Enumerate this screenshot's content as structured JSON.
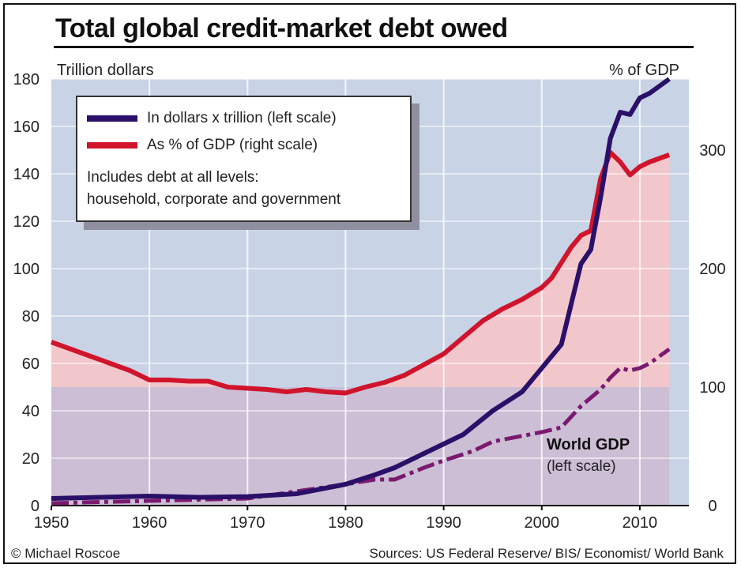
{
  "title": "Total global credit-market debt owed",
  "footer": {
    "credit": "© Michael Roscoe",
    "sources": "Sources: US Federal Reserve/ BIS/ Economist/ World Bank"
  },
  "colors": {
    "debt_dollars": "#2a1068",
    "debt_pct_gdp": "#d0142c",
    "world_gdp": "#7a1a6e",
    "plot_bg": "#c9d3e6",
    "pink_fill": "#f2c7cc",
    "purple_fill": "#c6bcd6"
  },
  "chart_data": {
    "type": "line",
    "xlabel": "",
    "ylabel_left": "Trillion dollars",
    "ylabel_right": "% of GDP",
    "xlim": [
      1950,
      2015
    ],
    "ylim_left": [
      0,
      180
    ],
    "ylim_right": [
      0,
      360
    ],
    "x_ticks": [
      1950,
      1960,
      1970,
      1980,
      1990,
      2000,
      2010
    ],
    "y_ticks_left": [
      0,
      20,
      40,
      60,
      80,
      100,
      120,
      140,
      160,
      180
    ],
    "y_ticks_right": [
      0,
      100,
      200,
      300
    ],
    "grid": true,
    "legend": {
      "placement": "top-left",
      "entries": [
        "In dollars x trillion (left scale)",
        "As % of GDP (right scale)"
      ],
      "note_line1": "Includes debt at all levels:",
      "note_line2": "household, corporate and government"
    },
    "annotation": {
      "label": "World GDP",
      "sublabel": "(left scale)"
    },
    "series": [
      {
        "name": "In dollars x trillion (left scale)",
        "axis": "left",
        "x": [
          1950,
          1955,
          1960,
          1965,
          1970,
          1975,
          1980,
          1983,
          1985,
          1988,
          1990,
          1992,
          1995,
          1998,
          2000,
          2002,
          2004,
          2005,
          2006,
          2007,
          2008,
          2009,
          2010,
          2011,
          2013
        ],
        "y": [
          3,
          3.5,
          4,
          3.5,
          3.8,
          5,
          9,
          13,
          16,
          22,
          26,
          30,
          40,
          48,
          58,
          68,
          102,
          108,
          130,
          155,
          166,
          165,
          172,
          174,
          180
        ]
      },
      {
        "name": "As % of GDP (right scale)",
        "axis": "right",
        "x": [
          1950,
          1952,
          1954,
          1956,
          1958,
          1960,
          1962,
          1964,
          1966,
          1968,
          1970,
          1972,
          1974,
          1976,
          1978,
          1980,
          1982,
          1984,
          1986,
          1988,
          1990,
          1992,
          1994,
          1996,
          1998,
          2000,
          2001,
          2002,
          2003,
          2004,
          2005,
          2006,
          2007,
          2008,
          2009,
          2010,
          2011,
          2013
        ],
        "y": [
          138,
          132,
          126,
          120,
          114,
          106,
          106,
          105,
          105,
          100,
          99,
          98,
          96,
          98,
          96,
          95,
          100,
          104,
          110,
          119,
          128,
          142,
          156,
          166,
          174,
          184,
          192,
          205,
          218,
          228,
          232,
          276,
          298,
          290,
          279,
          286,
          290,
          296
        ]
      },
      {
        "name": "World GDP",
        "axis": "left",
        "x": [
          1950,
          1955,
          1960,
          1965,
          1970,
          1975,
          1980,
          1983,
          1985,
          1988,
          1990,
          1993,
          1995,
          2000,
          2002,
          2004,
          2006,
          2007,
          2008,
          2009,
          2010,
          2011,
          2012,
          2013
        ],
        "y": [
          1,
          1.5,
          2,
          2.5,
          3,
          6,
          9,
          11,
          11,
          16,
          19,
          23,
          27,
          31,
          33,
          42,
          49,
          54,
          58,
          57,
          58,
          60,
          63,
          66
        ]
      }
    ]
  }
}
